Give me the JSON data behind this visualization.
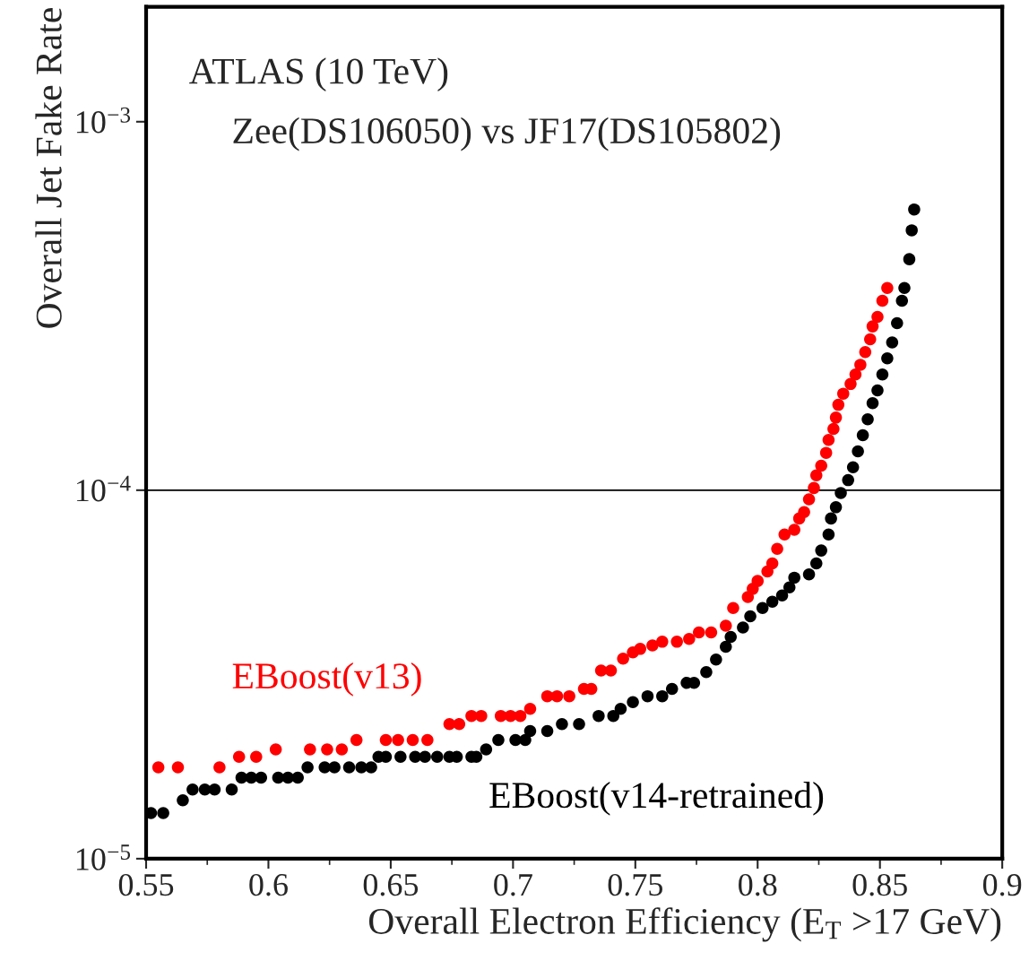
{
  "chart_data": {
    "type": "scatter",
    "xlabel": "Overall Electron Efficiency (E$_{T}$ >17 GeV)",
    "ylabel": "Overall Jet Fake Rate",
    "annotations": [
      "ATLAS (10 TeV)",
      "Zee(DS106050) vs JF17(DS105802)"
    ],
    "log": "y",
    "marker": "circle",
    "grid": false,
    "legend": false,
    "xlim": [
      0.55,
      0.9
    ],
    "xticks": [
      0.55,
      0.6,
      0.65,
      0.7,
      0.75,
      0.8,
      0.85,
      0.9
    ],
    "ylim": [
      1e-05,
      0.00205
    ],
    "yticks": [
      {
        "value": 1e-05,
        "label": "10$^{−5}$"
      },
      {
        "value": 0.0001,
        "label": "10$^{−4}$"
      },
      {
        "value": 0.001,
        "label": "10$^{−3}$"
      }
    ],
    "ref_lines": [
      {
        "axis": "y",
        "value": 0.0001,
        "color": "#000000",
        "line_style": "solid"
      }
    ],
    "series": [
      {
        "name": "EBoost(v13)",
        "color": "#ff0000",
        "x": [
          0.555,
          0.563,
          0.58,
          0.588,
          0.595,
          0.603,
          0.617,
          0.624,
          0.63,
          0.636,
          0.648,
          0.653,
          0.659,
          0.665,
          0.674,
          0.678,
          0.683,
          0.687,
          0.695,
          0.699,
          0.703,
          0.707,
          0.714,
          0.718,
          0.723,
          0.729,
          0.732,
          0.736,
          0.74,
          0.745,
          0.749,
          0.752,
          0.757,
          0.761,
          0.767,
          0.772,
          0.776,
          0.781,
          0.787,
          0.79,
          0.796,
          0.798,
          0.8,
          0.804,
          0.806,
          0.808,
          0.811,
          0.815,
          0.817,
          0.819,
          0.821,
          0.823,
          0.824,
          0.826,
          0.828,
          0.829,
          0.831,
          0.832,
          0.833,
          0.835,
          0.838,
          0.84,
          0.842,
          0.844,
          0.846,
          0.847,
          0.849,
          0.851,
          0.853
        ],
        "values": [
          1.77e-05,
          1.77e-05,
          1.77e-05,
          1.89e-05,
          1.89e-05,
          1.98e-05,
          1.98e-05,
          1.98e-05,
          1.98e-05,
          2.1e-05,
          2.1e-05,
          2.1e-05,
          2.1e-05,
          2.1e-05,
          2.32e-05,
          2.32e-05,
          2.44e-05,
          2.44e-05,
          2.44e-05,
          2.44e-05,
          2.44e-05,
          2.55e-05,
          2.76e-05,
          2.76e-05,
          2.76e-05,
          2.89e-05,
          2.89e-05,
          3.24e-05,
          3.24e-05,
          3.49e-05,
          3.63e-05,
          3.71e-05,
          3.79e-05,
          3.88e-05,
          3.88e-05,
          3.95e-05,
          4.11e-05,
          4.11e-05,
          4.29e-05,
          4.79e-05,
          5.13e-05,
          5.4e-05,
          5.67e-05,
          6.02e-05,
          6.33e-05,
          6.93e-05,
          7.58e-05,
          7.81e-05,
          8.38e-05,
          8.72e-05,
          9.45e-05,
          0.0001014,
          0.0001097,
          0.0001166,
          0.0001263,
          0.0001369,
          0.0001467,
          0.0001574,
          0.0001705,
          0.0001828,
          0.0001942,
          0.0002061,
          0.000219,
          0.0002371,
          0.0002568,
          0.0002783,
          0.0002954,
          0.0003267,
          0.0003539
        ]
      },
      {
        "name": "EBoost(v14-retrained)",
        "color": "#000000",
        "x": [
          0.552,
          0.557,
          0.565,
          0.569,
          0.574,
          0.578,
          0.585,
          0.589,
          0.593,
          0.597,
          0.604,
          0.608,
          0.612,
          0.616,
          0.623,
          0.627,
          0.633,
          0.638,
          0.642,
          0.645,
          0.648,
          0.654,
          0.66,
          0.664,
          0.669,
          0.674,
          0.677,
          0.683,
          0.685,
          0.689,
          0.694,
          0.701,
          0.705,
          0.707,
          0.714,
          0.72,
          0.727,
          0.735,
          0.741,
          0.744,
          0.749,
          0.755,
          0.761,
          0.765,
          0.771,
          0.774,
          0.779,
          0.783,
          0.787,
          0.789,
          0.794,
          0.797,
          0.802,
          0.806,
          0.81,
          0.813,
          0.815,
          0.821,
          0.824,
          0.826,
          0.829,
          0.83,
          0.832,
          0.834,
          0.837,
          0.839,
          0.841,
          0.843,
          0.845,
          0.847,
          0.849,
          0.851,
          0.853,
          0.855,
          0.857,
          0.859,
          0.86,
          0.862,
          0.863,
          0.864
        ],
        "values": [
          1.33e-05,
          1.33e-05,
          1.44e-05,
          1.54e-05,
          1.54e-05,
          1.54e-05,
          1.54e-05,
          1.66e-05,
          1.66e-05,
          1.66e-05,
          1.66e-05,
          1.66e-05,
          1.66e-05,
          1.77e-05,
          1.77e-05,
          1.77e-05,
          1.77e-05,
          1.77e-05,
          1.77e-05,
          1.89e-05,
          1.89e-05,
          1.89e-05,
          1.89e-05,
          1.89e-05,
          1.89e-05,
          1.89e-05,
          1.89e-05,
          1.89e-05,
          1.89e-05,
          1.98e-05,
          2.1e-05,
          2.1e-05,
          2.1e-05,
          2.22e-05,
          2.22e-05,
          2.32e-05,
          2.32e-05,
          2.44e-05,
          2.44e-05,
          2.55e-05,
          2.66e-05,
          2.76e-05,
          2.76e-05,
          2.89e-05,
          3e-05,
          3e-05,
          3.21e-05,
          3.47e-05,
          3.76e-05,
          4e-05,
          4.24e-05,
          4.55e-05,
          4.79e-05,
          4.98e-05,
          5.18e-05,
          5.45e-05,
          5.79e-05,
          5.91e-05,
          6.33e-05,
          6.86e-05,
          7.58e-05,
          8.38e-05,
          8.99e-05,
          9.83e-05,
          0.0001065,
          0.0001154,
          0.0001275,
          0.000141,
          0.0001558,
          0.0001722,
          0.0001866,
          0.0002061,
          0.000228,
          0.0002519,
          0.000284,
          0.0003267,
          0.0003539,
          0.0004236,
          0.0005074,
          0.000578
        ]
      }
    ]
  }
}
